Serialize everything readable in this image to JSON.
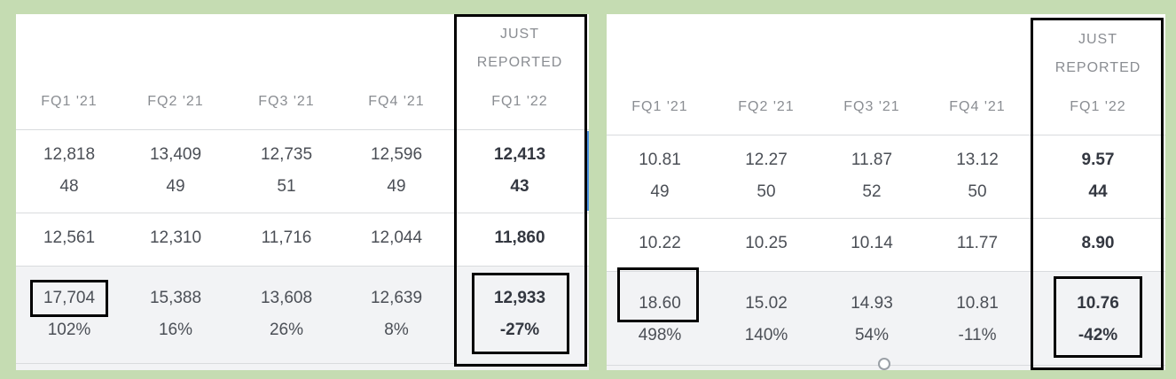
{
  "left": {
    "just_reported": [
      "JUST",
      "REPORTED"
    ],
    "headers": [
      "FQ1 '21",
      "FQ2 '21",
      "FQ3 '21",
      "FQ4 '21",
      "FQ1 '22"
    ],
    "row1_top": [
      "12,818",
      "13,409",
      "12,735",
      "12,596",
      "12,413"
    ],
    "row1_bottom": [
      "48",
      "49",
      "51",
      "49",
      "43"
    ],
    "row2": [
      "12,561",
      "12,310",
      "11,716",
      "12,044",
      "11,860"
    ],
    "row3_top": [
      "17,704",
      "15,388",
      "13,608",
      "12,639",
      "12,933"
    ],
    "row3_bottom": [
      "102%",
      "16%",
      "26%",
      "8%",
      "-27%"
    ]
  },
  "right": {
    "just_reported": [
      "JUST",
      "REPORTED"
    ],
    "headers": [
      "FQ1 '21",
      "FQ2 '21",
      "FQ3 '21",
      "FQ4 '21",
      "FQ1 '22"
    ],
    "row1_top": [
      "10.81",
      "12.27",
      "11.87",
      "13.12",
      "9.57"
    ],
    "row1_bottom": [
      "49",
      "50",
      "52",
      "50",
      "44"
    ],
    "row2": [
      "10.22",
      "10.25",
      "10.14",
      "11.77",
      "8.90"
    ],
    "row3_top": [
      "18.60",
      "15.02",
      "14.93",
      "10.81",
      "10.76"
    ],
    "row3_bottom": [
      "498%",
      "140%",
      "54%",
      "-11%",
      "-42%"
    ]
  },
  "colors": {
    "background": "#c5dcb2",
    "panel": "#ffffff",
    "text": "#4b4f56",
    "header_text": "#8a8d92",
    "highlight_box": "#000000",
    "accent_bar": "#4a90e2"
  }
}
